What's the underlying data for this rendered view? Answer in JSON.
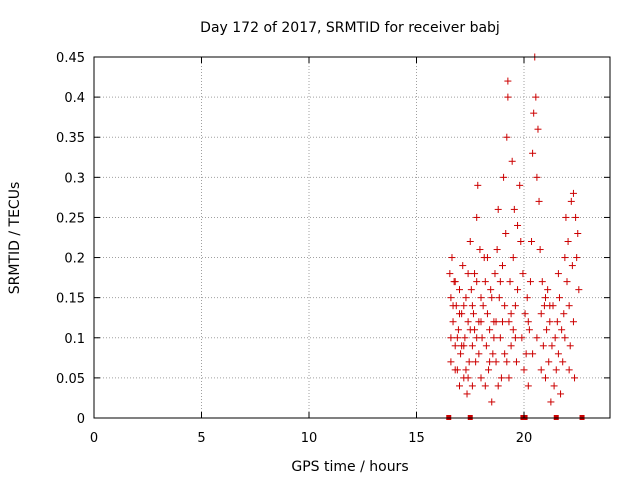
{
  "chart_data": {
    "type": "scatter",
    "title": "Day 172 of 2017, SRMTID for receiver babj",
    "xlabel": "GPS time / hours",
    "ylabel": "SRMTID / TECUs",
    "xlim": [
      0,
      24
    ],
    "ylim": [
      0,
      0.45
    ],
    "xticks": [
      "0",
      "5",
      "10",
      "15",
      "20"
    ],
    "xtick_values": [
      0,
      5,
      10,
      15,
      20
    ],
    "yticks": [
      "0",
      "0.05",
      "0.1",
      "0.15",
      "0.2",
      "0.25",
      "0.3",
      "0.35",
      "0.4",
      "0.45"
    ],
    "ytick_values": [
      0,
      0.05,
      0.1,
      0.15,
      0.2,
      0.25,
      0.3,
      0.35,
      0.4,
      0.45
    ],
    "grid": true,
    "marker": "+",
    "color": "#cc0000",
    "series": [
      {
        "points": [
          [
            16.55,
            0.18
          ],
          [
            16.6,
            0.15
          ],
          [
            16.65,
            0.2
          ],
          [
            16.7,
            0.12
          ],
          [
            16.75,
            0.17
          ],
          [
            16.8,
            0.09
          ],
          [
            16.85,
            0.14
          ],
          [
            16.9,
            0.06
          ],
          [
            16.95,
            0.11
          ],
          [
            17.0,
            0.16
          ],
          [
            17.05,
            0.08
          ],
          [
            17.1,
            0.13
          ],
          [
            17.15,
            0.19
          ],
          [
            17.2,
            0.05
          ],
          [
            17.25,
            0.1
          ],
          [
            17.3,
            0.15
          ],
          [
            17.35,
            0.03
          ],
          [
            17.4,
            0.12
          ],
          [
            17.45,
            0.07
          ],
          [
            17.5,
            0.22
          ],
          [
            16.6,
            0.07
          ],
          [
            16.7,
            0.14
          ],
          [
            16.8,
            0.17
          ],
          [
            16.9,
            0.1
          ],
          [
            17.0,
            0.04
          ],
          [
            17.1,
            0.09
          ],
          [
            17.2,
            0.14
          ],
          [
            17.3,
            0.06
          ],
          [
            17.4,
            0.18
          ],
          [
            17.5,
            0.11
          ],
          [
            17.55,
            0.16
          ],
          [
            17.6,
            0.09
          ],
          [
            17.65,
            0.13
          ],
          [
            17.7,
            0.18
          ],
          [
            17.75,
            0.07
          ],
          [
            17.8,
            0.25
          ],
          [
            17.85,
            0.29
          ],
          [
            17.9,
            0.12
          ],
          [
            17.95,
            0.21
          ],
          [
            18.0,
            0.05
          ],
          [
            17.6,
            0.04
          ],
          [
            17.7,
            0.11
          ],
          [
            17.8,
            0.17
          ],
          [
            17.9,
            0.08
          ],
          [
            18.0,
            0.15
          ],
          [
            18.05,
            0.1
          ],
          [
            18.1,
            0.14
          ],
          [
            18.15,
            0.2
          ],
          [
            18.2,
            0.04
          ],
          [
            18.25,
            0.09
          ],
          [
            18.3,
            0.13
          ],
          [
            18.35,
            0.06
          ],
          [
            18.4,
            0.11
          ],
          [
            18.45,
            0.16
          ],
          [
            18.5,
            0.02
          ],
          [
            18.55,
            0.08
          ],
          [
            18.6,
            0.12
          ],
          [
            18.65,
            0.18
          ],
          [
            18.7,
            0.07
          ],
          [
            18.75,
            0.21
          ],
          [
            18.8,
            0.26
          ],
          [
            18.85,
            0.15
          ],
          [
            18.9,
            0.1
          ],
          [
            18.95,
            0.05
          ],
          [
            19.0,
            0.19
          ],
          [
            19.05,
            0.3
          ],
          [
            19.1,
            0.14
          ],
          [
            19.15,
            0.23
          ],
          [
            19.2,
            0.35
          ],
          [
            19.25,
            0.4
          ],
          [
            19.25,
            0.42
          ],
          [
            19.3,
            0.12
          ],
          [
            19.35,
            0.17
          ],
          [
            19.4,
            0.09
          ],
          [
            19.45,
            0.32
          ],
          [
            19.5,
            0.2
          ],
          [
            19.55,
            0.26
          ],
          [
            19.6,
            0.14
          ],
          [
            19.65,
            0.07
          ],
          [
            19.7,
            0.24
          ],
          [
            18.3,
            0.2
          ],
          [
            18.5,
            0.15
          ],
          [
            18.7,
            0.12
          ],
          [
            18.9,
            0.17
          ],
          [
            19.1,
            0.08
          ],
          [
            19.3,
            0.05
          ],
          [
            19.5,
            0.11
          ],
          [
            19.7,
            0.16
          ],
          [
            19.8,
            0.29
          ],
          [
            19.85,
            0.22
          ],
          [
            19.9,
            0.1
          ],
          [
            19.95,
            0.18
          ],
          [
            20.0,
            0.06
          ],
          [
            20.05,
            0.13
          ],
          [
            20.1,
            0.08
          ],
          [
            20.15,
            0.15
          ],
          [
            20.2,
            0.04
          ],
          [
            20.25,
            0.11
          ],
          [
            20.3,
            0.17
          ],
          [
            20.35,
            0.22
          ],
          [
            20.4,
            0.33
          ],
          [
            20.45,
            0.38
          ],
          [
            20.5,
            0.45
          ],
          [
            20.55,
            0.4
          ],
          [
            20.6,
            0.3
          ],
          [
            20.65,
            0.36
          ],
          [
            20.7,
            0.27
          ],
          [
            20.75,
            0.21
          ],
          [
            20.8,
            0.13
          ],
          [
            20.85,
            0.17
          ],
          [
            20.9,
            0.09
          ],
          [
            20.95,
            0.14
          ],
          [
            21.0,
            0.05
          ],
          [
            21.05,
            0.11
          ],
          [
            21.1,
            0.16
          ],
          [
            21.15,
            0.07
          ],
          [
            21.2,
            0.12
          ],
          [
            21.25,
            0.02
          ],
          [
            21.3,
            0.09
          ],
          [
            21.35,
            0.14
          ],
          [
            21.4,
            0.04
          ],
          [
            21.45,
            0.1
          ],
          [
            21.5,
            0.06
          ],
          [
            21.55,
            0.12
          ],
          [
            21.6,
            0.08
          ],
          [
            21.65,
            0.15
          ],
          [
            21.7,
            0.03
          ],
          [
            21.75,
            0.11
          ],
          [
            21.8,
            0.07
          ],
          [
            21.85,
            0.13
          ],
          [
            21.9,
            0.2
          ],
          [
            21.95,
            0.25
          ],
          [
            22.0,
            0.17
          ],
          [
            22.05,
            0.22
          ],
          [
            22.1,
            0.14
          ],
          [
            22.15,
            0.09
          ],
          [
            22.2,
            0.27
          ],
          [
            22.25,
            0.19
          ],
          [
            22.3,
            0.12
          ],
          [
            22.35,
            0.05
          ],
          [
            22.4,
            0.25
          ],
          [
            22.45,
            0.2
          ],
          [
            22.5,
            0.23
          ],
          [
            22.55,
            0.16
          ],
          [
            22.3,
            0.28
          ],
          [
            21.9,
            0.1
          ],
          [
            22.1,
            0.06
          ],
          [
            21.6,
            0.18
          ],
          [
            21.2,
            0.14
          ],
          [
            20.6,
            0.1
          ],
          [
            16.6,
            0.1
          ],
          [
            16.8,
            0.06
          ],
          [
            17.0,
            0.13
          ],
          [
            17.2,
            0.09
          ],
          [
            17.4,
            0.05
          ],
          [
            17.6,
            0.14
          ],
          [
            17.8,
            0.1
          ],
          [
            18.0,
            0.12
          ],
          [
            18.2,
            0.17
          ],
          [
            18.4,
            0.07
          ],
          [
            18.6,
            0.1
          ],
          [
            18.8,
            0.04
          ],
          [
            19.0,
            0.12
          ],
          [
            19.2,
            0.07
          ],
          [
            19.4,
            0.13
          ],
          [
            19.6,
            0.1
          ],
          [
            20.2,
            0.12
          ],
          [
            20.4,
            0.08
          ],
          [
            20.8,
            0.06
          ],
          [
            21.0,
            0.15
          ]
        ]
      }
    ],
    "baseline_markers_x": [
      16.5,
      17.5,
      19.95,
      20.05,
      21.5,
      22.7
    ]
  }
}
